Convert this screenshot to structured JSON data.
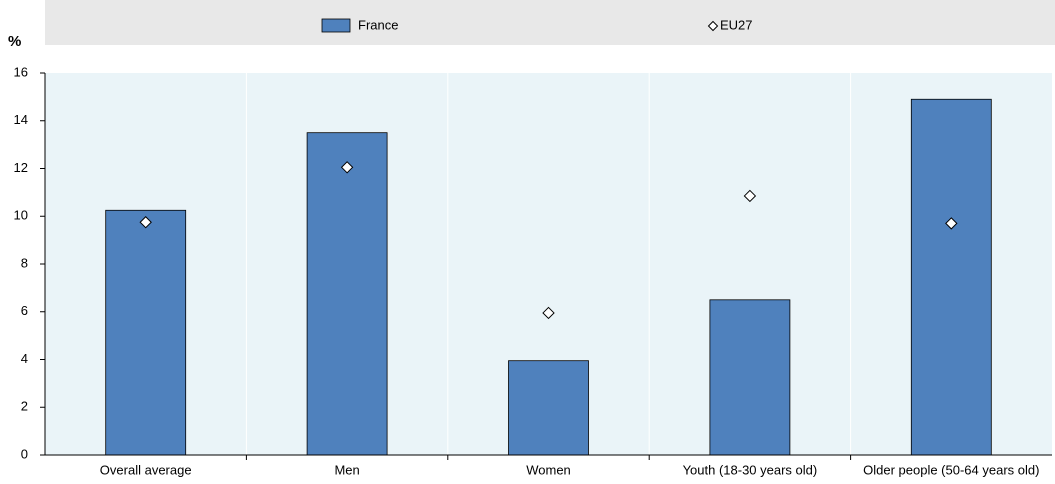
{
  "chart_data": {
    "type": "bar",
    "y_label": "%",
    "categories": [
      "Overall average",
      "Men",
      "Women",
      "Youth (18-30 years old)",
      "Older people (50-64 years old)"
    ],
    "series": [
      {
        "name": "France",
        "kind": "bar",
        "color": "#4f81bd",
        "values": [
          10.25,
          13.5,
          3.95,
          6.5,
          14.9
        ]
      },
      {
        "name": "EU27",
        "kind": "diamond",
        "color": "#ffffff",
        "values": [
          9.75,
          12.05,
          5.95,
          10.85,
          9.7
        ]
      }
    ],
    "ylim": [
      0,
      16
    ],
    "yticks": [
      0,
      2,
      4,
      6,
      8,
      10,
      12,
      14,
      16
    ],
    "legend": "top"
  }
}
